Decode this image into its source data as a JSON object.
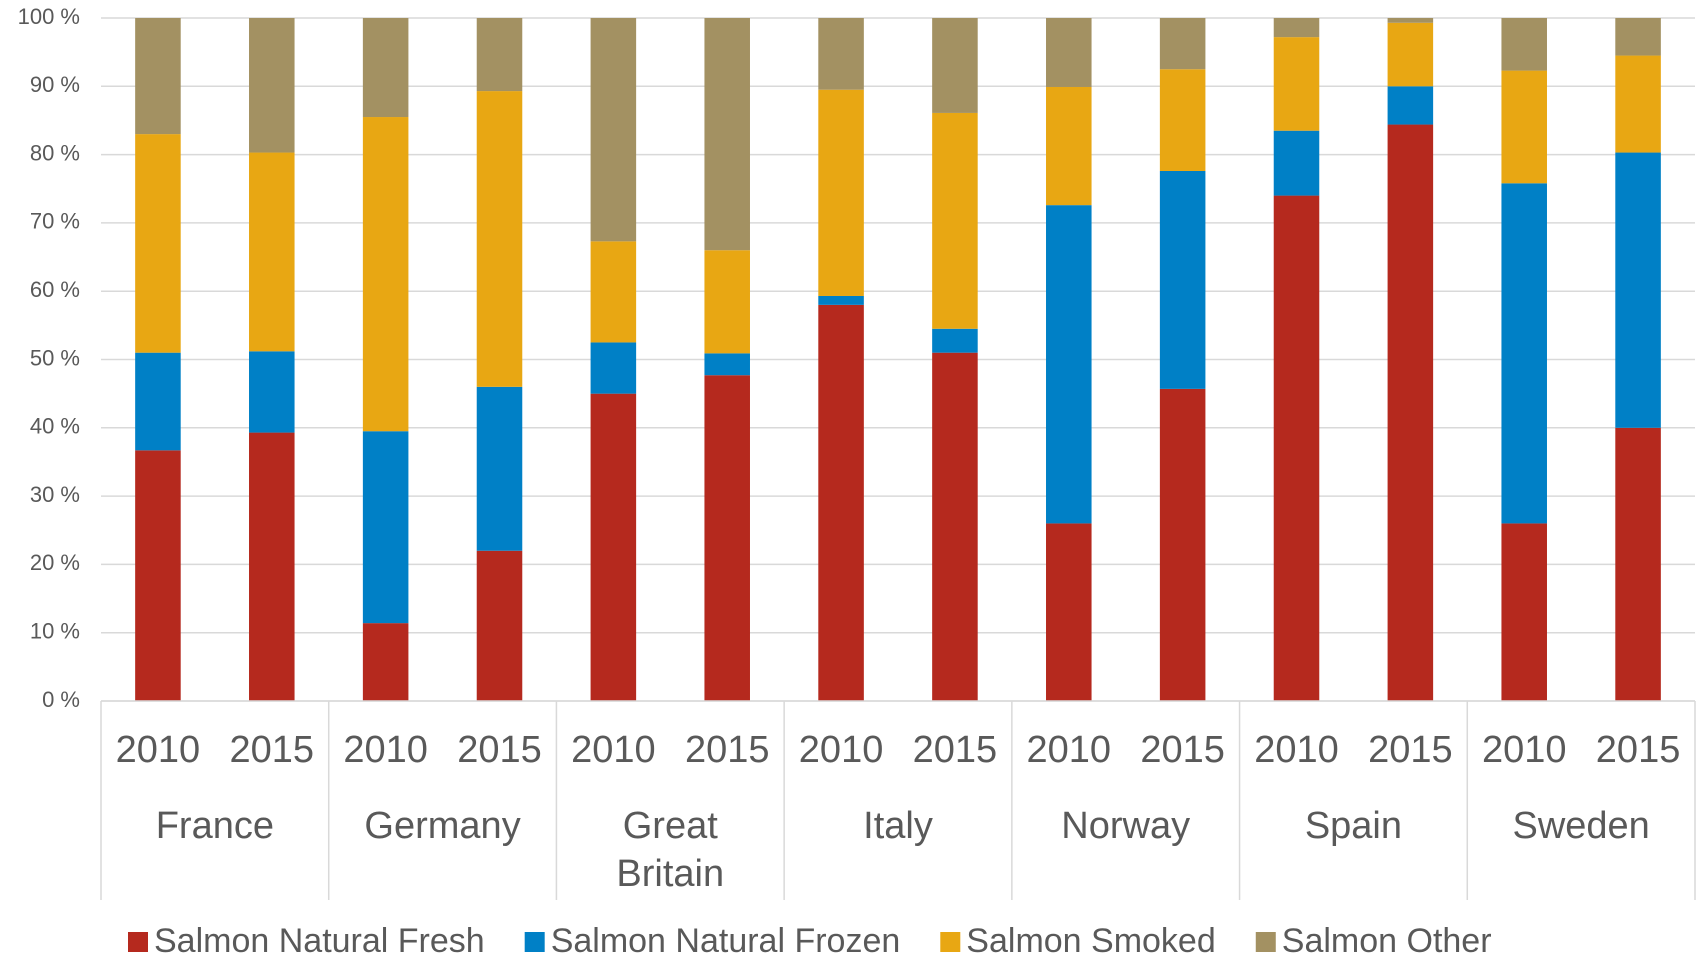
{
  "chart_data": {
    "type": "stacked_bar",
    "categories": [
      "2010",
      "2015",
      "2010",
      "2015",
      "2010",
      "2015",
      "2010",
      "2015",
      "2010",
      "2015",
      "2010",
      "2015",
      "2010",
      "2015"
    ],
    "groups": [
      "France",
      "Germany",
      "Great Britain",
      "Italy",
      "Norway",
      "Spain",
      "Sweden"
    ],
    "series": [
      {
        "name": "Salmon Natural Fresh",
        "color": "#b5291e",
        "values": [
          36.7,
          39.3,
          11.4,
          22,
          45,
          47.7,
          58,
          51,
          26,
          45.7,
          74,
          84.4,
          26,
          40
        ]
      },
      {
        "name": "Salmon Natural Frozen",
        "color": "#0080c6",
        "values": [
          14.3,
          11.9,
          28.1,
          24,
          7.5,
          3.2,
          1.3,
          3.5,
          46.6,
          31.9,
          9.5,
          5.6,
          49.8,
          40.3
        ]
      },
      {
        "name": "Salmon Smoked",
        "color": "#e8a713",
        "values": [
          32,
          29.1,
          46,
          43.3,
          14.8,
          15.1,
          30.2,
          31.6,
          17.3,
          14.9,
          13.7,
          9.3,
          16.5,
          14.2
        ]
      },
      {
        "name": "Salmon Other",
        "color": "#a39162",
        "values": [
          17,
          19.7,
          14.5,
          10.7,
          32.7,
          34,
          10.5,
          13.9,
          10.1,
          7.5,
          2.8,
          0.7,
          7.7,
          5.5
        ]
      }
    ],
    "ylim": [
      0,
      100
    ],
    "yticks": [
      {
        "value": 0,
        "label": "0 %"
      },
      {
        "value": 10,
        "label": "10 %"
      },
      {
        "value": 20,
        "label": "20 %"
      },
      {
        "value": 30,
        "label": "30 %"
      },
      {
        "value": 40,
        "label": "40 %"
      },
      {
        "value": 50,
        "label": "50 %"
      },
      {
        "value": 60,
        "label": "60 %"
      },
      {
        "value": 70,
        "label": "70 %"
      },
      {
        "value": 80,
        "label": "80 %"
      },
      {
        "value": 90,
        "label": "90 %"
      },
      {
        "value": 100,
        "label": "100 %"
      }
    ],
    "grid": true,
    "legend": "bottom"
  }
}
